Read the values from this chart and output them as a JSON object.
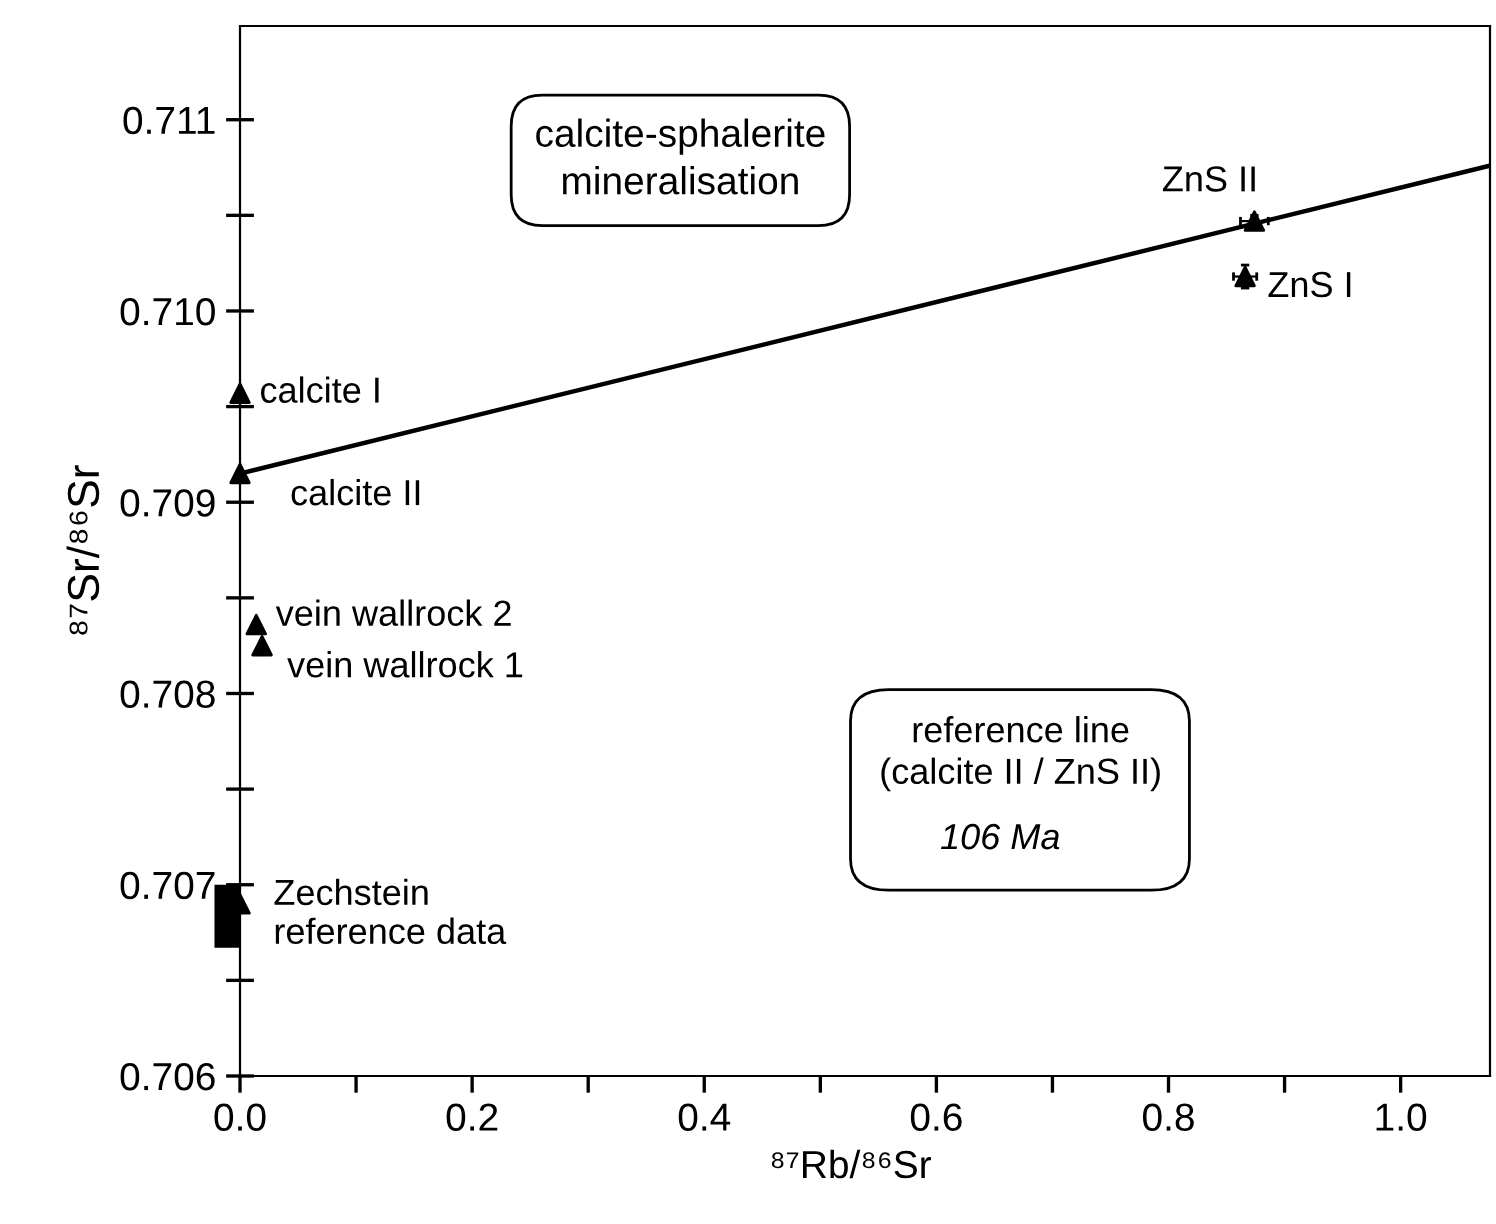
{
  "chart_data": {
    "type": "scatter",
    "xlabel": "⁸⁷Rb/⁸⁶Sr",
    "ylabel": "⁸⁷Sr/⁸⁶Sr",
    "xlim": [
      -0.025,
      1.077
    ],
    "ylim": [
      0.706,
      0.71149
    ],
    "xticks": [
      {
        "value": 0,
        "label": "0.0"
      },
      {
        "value": 0.1,
        "label": null
      },
      0.2,
      {
        "value": 0.3,
        "label": null
      },
      0.4,
      {
        "value": 0.5,
        "label": null
      },
      0.6,
      {
        "value": 0.7,
        "label": null
      },
      0.8,
      {
        "value": 0.9,
        "label": null
      },
      {
        "value": 1.0,
        "label": "1.0"
      }
    ],
    "yticks": [
      {
        "value": 0.706,
        "label": "0.706"
      },
      {
        "value": 0.7065,
        "label": null
      },
      {
        "value": 0.707,
        "label": "0.707"
      },
      {
        "value": 0.7075,
        "label": null
      },
      {
        "value": 0.708,
        "label": "0.708"
      },
      {
        "value": 0.7085,
        "label": null
      },
      {
        "value": 0.709,
        "label": "0.709"
      },
      {
        "value": 0.7095,
        "label": null
      },
      {
        "value": 0.71,
        "label": "0.710"
      },
      {
        "value": 0.7105,
        "label": null
      },
      {
        "value": 0.711,
        "label": "0.711"
      }
    ],
    "marker": "triangle",
    "grid": false,
    "legend": false,
    "series": [
      {
        "type": "line",
        "color": "#000000",
        "x": [
          0,
          1.077
        ],
        "values": [
          0.70915,
          0.71076
        ],
        "marker": "none"
      },
      {
        "type": "bar",
        "color": "#000000",
        "x": [
          -0.011
        ],
        "base": [
          0.70667
        ],
        "values": [
          0.00033
        ]
      },
      {
        "name": "calcite I",
        "color": "#000000",
        "x": [
          0
        ],
        "values": [
          0.70957
        ]
      },
      {
        "name": "calcite II",
        "color": "#000000",
        "x": [
          0
        ],
        "values": [
          0.70915
        ]
      },
      {
        "name": "vein wallrock 2",
        "color": "#000000",
        "x": [
          0.014
        ],
        "values": [
          0.70836
        ]
      },
      {
        "name": "vein wallrock 1",
        "color": "#000000",
        "x": [
          0.019
        ],
        "values": [
          0.70825
        ]
      },
      {
        "name": "ZnS II",
        "color": "#000000",
        "x": [
          0.874
        ],
        "values": [
          0.71047
        ],
        "xerrors": [
          0.012
        ],
        "errors": [
          3e-05
        ]
      },
      {
        "name": "ZnS I",
        "color": "#000000",
        "x": [
          0.866
        ],
        "values": [
          0.71018
        ],
        "xerrors": [
          0.01
        ],
        "errors": [
          6e-05
        ]
      },
      {
        "name": "Zechstein\nreference data",
        "color": "#000000",
        "x": [
          0
        ],
        "values": [
          0.7069
        ]
      }
    ],
    "annotations": [
      "calcite-sphalerite\nmineralisation",
      "reference line\n(calcite II / ZnS II)",
      "106 Ma"
    ]
  }
}
